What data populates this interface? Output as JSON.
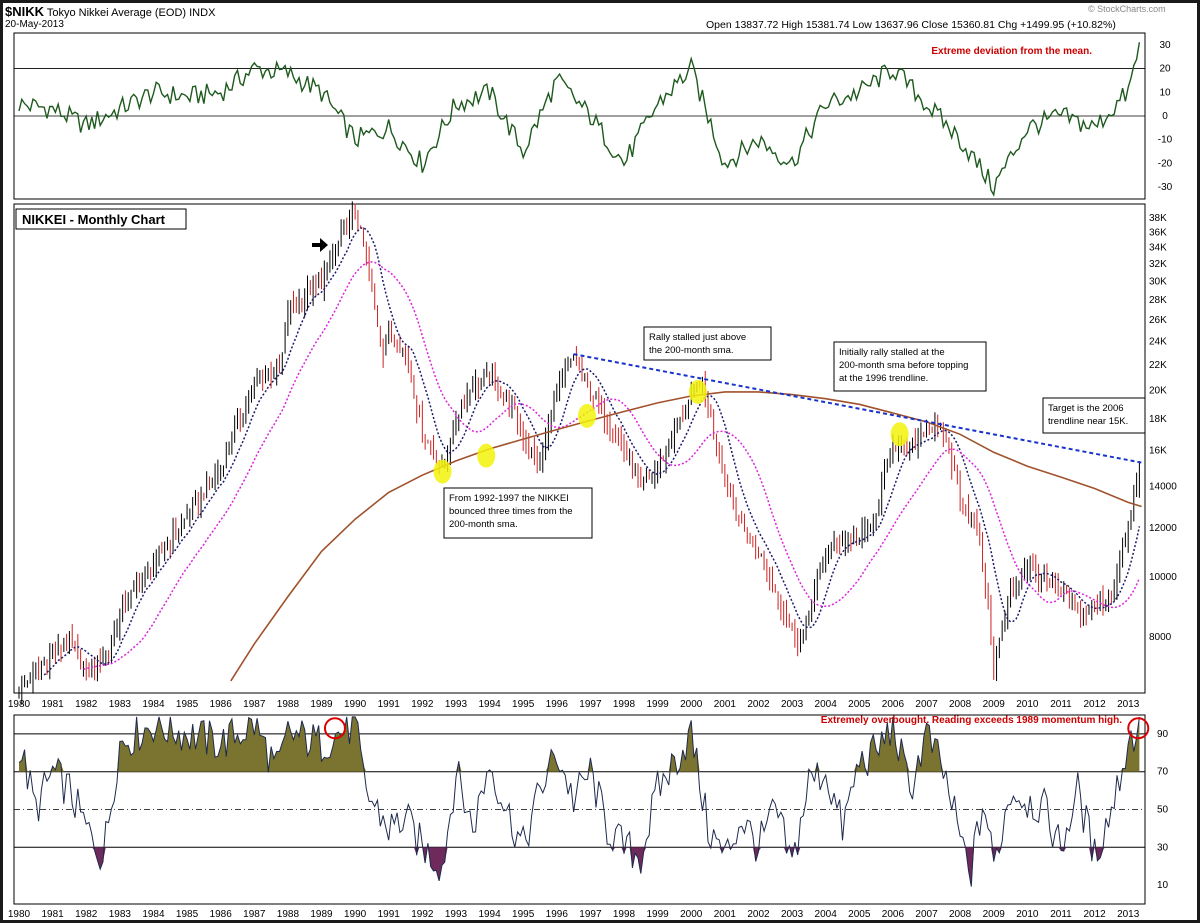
{
  "header": {
    "symbol": "$NIKK",
    "name": "Tokyo Nikkei Average (EOD)",
    "exchange": "INDX",
    "date": "20-May-2013",
    "ohlc": "Open 13837.72  High 15381.74  Low 13637.96  Close 15360.81  Chg +1499.95 (+10.82%)",
    "watermark": "© StockCharts.com"
  },
  "colors": {
    "price_up": "#000000",
    "price_down": "#cc2222",
    "sma_fast": "#1a1a6e",
    "sma_slow": "#dd22dd",
    "sma_200": "#a0522d",
    "trendline": "#1a33cc",
    "oscillator": "#1e5a1e",
    "rsi_line": "#1e2a4e",
    "overbought_fill": "#7a7430",
    "oversold_fill": "#6e2a5a",
    "highlight": "#f2f20a",
    "annotation_red": "#cc0000"
  },
  "chart_data": [
    {
      "type": "line",
      "panel": "top-oscillator",
      "series": [
        {
          "x": [
            1980,
            1981,
            1982,
            1983,
            1984,
            1985,
            1986,
            1987,
            1988,
            1989,
            1990,
            1991,
            1992,
            1993,
            1994,
            1995,
            1996,
            1997,
            1998,
            1999,
            2000,
            2001,
            2002,
            2003,
            2004,
            2005,
            2006,
            2007,
            2008,
            2009,
            2010,
            2011,
            2012,
            2013,
            2013.4
          ],
          "values": [
            5,
            3,
            -4,
            3,
            10,
            8,
            10,
            20,
            18,
            10,
            -10,
            -5,
            -20,
            5,
            10,
            -15,
            15,
            0,
            -20,
            5,
            20,
            -20,
            -10,
            -20,
            5,
            10,
            20,
            5,
            -10,
            -30,
            -5,
            0,
            -5,
            10,
            33
          ]
        }
      ],
      "ylim": [
        -35,
        35
      ],
      "yticks": [
        30,
        20,
        10,
        0,
        -10,
        -20,
        -30
      ],
      "reference_lines": [
        20,
        0
      ],
      "annotations": [
        "Extreme deviation from the mean."
      ]
    },
    {
      "type": "line",
      "panel": "price",
      "title": "NIKKEI - Monthly Chart",
      "y_scale": "log",
      "ylim": [
        6500,
        40000
      ],
      "yticks": [
        8000,
        10000,
        12000,
        14000,
        16000,
        18000,
        20000,
        22000,
        24000,
        26000,
        28000,
        30000,
        32000,
        34000,
        36000,
        38000
      ],
      "ytick_labels": [
        "8000",
        "10000",
        "12000",
        "14000",
        "16K",
        "18K",
        "20K",
        "22K",
        "24K",
        "26K",
        "28K",
        "30K",
        "32K",
        "34K",
        "36K",
        "38K"
      ],
      "x_labels": [
        "1980",
        "1981",
        "1982",
        "1983",
        "1984",
        "1985",
        "1986",
        "1987",
        "1988",
        "1989",
        "1990",
        "1991",
        "1992",
        "1993",
        "1994",
        "1995",
        "1996",
        "1997",
        "1998",
        "1999",
        "2000",
        "2001",
        "2002",
        "2003",
        "2004",
        "2005",
        "2006",
        "2007",
        "2008",
        "2009",
        "2010",
        "2011",
        "2012",
        "2013"
      ],
      "price_path": {
        "x": [
          1980,
          1981,
          1981.5,
          1982,
          1982.7,
          1983,
          1984,
          1985,
          1986,
          1987,
          1987.8,
          1988,
          1989,
          1990,
          1990.3,
          1990.8,
          1991,
          1991.5,
          1992,
          1992.6,
          1993,
          1993.5,
          1994,
          1994.5,
          1995,
          1995.5,
          1996,
          1996.5,
          1997,
          1997.5,
          1998,
          1998.5,
          1999,
          1999.5,
          2000,
          2000.3,
          2000.8,
          2001,
          2001.5,
          2002,
          2002.5,
          2003,
          2003.3,
          2004,
          2004.5,
          2005,
          2005.5,
          2006,
          2006.5,
          2007,
          2007.5,
          2008,
          2008.5,
          2009,
          2009.2,
          2009.5,
          2010,
          2010.5,
          2011,
          2011.5,
          2012,
          2012.5,
          2013,
          2013.4
        ],
        "values": [
          6600,
          7500,
          7900,
          7000,
          7600,
          8800,
          10500,
          12500,
          15000,
          20500,
          22000,
          27000,
          30000,
          38900,
          33000,
          23000,
          25000,
          23000,
          17000,
          15000,
          18000,
          20500,
          21000,
          19500,
          17000,
          15000,
          20000,
          22500,
          20000,
          18000,
          16000,
          14000,
          15000,
          17000,
          19500,
          20800,
          16000,
          14500,
          12000,
          11000,
          9500,
          8200,
          7800,
          11000,
          11500,
          11500,
          12500,
          16500,
          16000,
          17500,
          17200,
          13500,
          12000,
          7200,
          8000,
          9500,
          10500,
          9800,
          9500,
          8700,
          9000,
          9300,
          12000,
          15360
        ]
      },
      "sma_200": {
        "x": [
          1986.3,
          1987,
          1988,
          1989,
          1990,
          1991,
          1992,
          1993,
          1994,
          1995,
          1996,
          1997,
          1998,
          1999,
          2000,
          2001,
          2002,
          2003,
          2004,
          2005,
          2006,
          2007,
          2008,
          2009,
          2010,
          2011,
          2012,
          2013,
          2013.4
        ],
        "values": [
          6800,
          7800,
          9300,
          11000,
          12400,
          13700,
          14600,
          15400,
          16100,
          16700,
          17300,
          17900,
          18500,
          19100,
          19600,
          19900,
          19900,
          19700,
          19400,
          19000,
          18400,
          17800,
          17000,
          15900,
          15100,
          14500,
          13900,
          13200,
          13000
        ]
      },
      "trendline": {
        "x": [
          1996.5,
          2013.4
        ],
        "values": [
          22900,
          15300
        ]
      },
      "highlights": [
        {
          "x": 1992.6,
          "value": 14800
        },
        {
          "x": 1993.9,
          "value": 15700
        },
        {
          "x": 1996.9,
          "value": 18200
        },
        {
          "x": 2000.2,
          "value": 19900
        },
        {
          "x": 2006.2,
          "value": 17000
        }
      ],
      "annotations": [
        {
          "lines": [
            "From 1992-1997 the NIKKEI",
            "bounced three times from the",
            "200-month sma."
          ]
        },
        {
          "lines": [
            "Rally stalled just above",
            "the 200-month sma."
          ]
        },
        {
          "lines": [
            "Initially rally stalled at the",
            "200-month sma before topping",
            "at the 1996 trendline."
          ]
        },
        {
          "lines": [
            "Target is the 2006",
            "trendline near 15K."
          ]
        }
      ]
    },
    {
      "type": "area",
      "panel": "momentum",
      "series": [
        {
          "x": [
            1980,
            1980.5,
            1981,
            1981.5,
            1982,
            1982.5,
            1983,
            1984,
            1985,
            1986,
            1987,
            1987.7,
            1988,
            1989,
            1989.5,
            1990,
            1990.3,
            1991,
            1991.5,
            1992,
            1992.6,
            1993,
            1993.5,
            1994,
            1994.5,
            1995,
            1995.5,
            1996,
            1996.5,
            1997,
            1997.5,
            1998,
            1998.5,
            1999,
            1999.5,
            2000,
            2000.5,
            2001,
            2001.5,
            2002,
            2002.5,
            2003,
            2003.5,
            2004,
            2004.5,
            2005,
            2005.5,
            2006,
            2006.5,
            2007,
            2007.5,
            2008,
            2008.3,
            2008.7,
            2009,
            2009.5,
            2010,
            2010.5,
            2011,
            2011.5,
            2012,
            2012.5,
            2013,
            2013.4
          ],
          "values": [
            85,
            50,
            70,
            60,
            40,
            25,
            85,
            95,
            90,
            85,
            95,
            70,
            90,
            85,
            90,
            95,
            60,
            40,
            45,
            30,
            20,
            70,
            40,
            75,
            50,
            30,
            60,
            80,
            55,
            70,
            40,
            30,
            25,
            60,
            75,
            90,
            40,
            25,
            45,
            30,
            50,
            20,
            65,
            70,
            40,
            75,
            80,
            95,
            60,
            90,
            70,
            35,
            15,
            55,
            20,
            60,
            55,
            50,
            30,
            60,
            25,
            50,
            85,
            96
          ]
        }
      ],
      "ylim": [
        0,
        100
      ],
      "yticks": [
        90,
        70,
        50,
        30,
        10
      ],
      "reference_lines": [
        90,
        70,
        50,
        30
      ],
      "highlights": [
        {
          "x": 1989.4,
          "value": 93
        },
        {
          "x": 2013.3,
          "value": 93
        }
      ],
      "annotations": [
        "Extremely overbought. Reading exceeds 1989 momentum high."
      ],
      "x_labels": [
        "1980",
        "1981",
        "1982",
        "1983",
        "1984",
        "1985",
        "1986",
        "1987",
        "1988",
        "1989",
        "1990",
        "1991",
        "1992",
        "1993",
        "1994",
        "1995",
        "1996",
        "1997",
        "1998",
        "1999",
        "2000",
        "2001",
        "2002",
        "2003",
        "2004",
        "2005",
        "2006",
        "2007",
        "2008",
        "2009",
        "2010",
        "2011",
        "2012",
        "2013"
      ]
    }
  ]
}
